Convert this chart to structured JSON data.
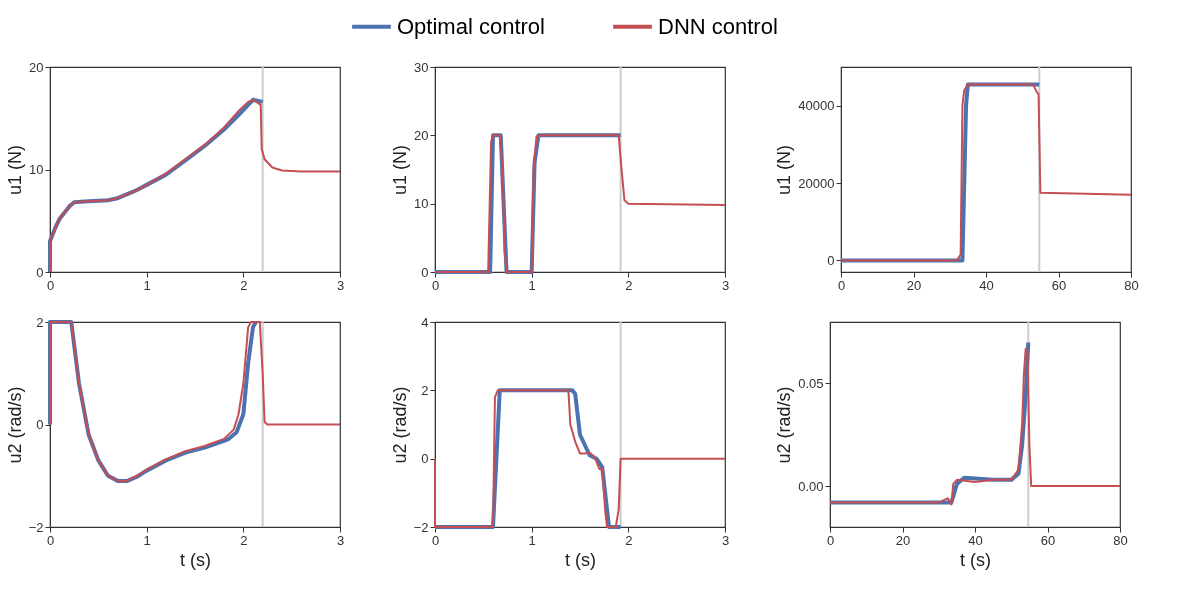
{
  "chart_data": [
    {
      "type": "line",
      "ylabel": "u1 (N)",
      "xlim": [
        0,
        3
      ],
      "xticks": [
        0,
        1,
        2,
        3
      ],
      "ylim": [
        0,
        20
      ],
      "yticks": [
        0,
        10,
        20
      ],
      "grid": false,
      "legend": "top",
      "marker": "none",
      "line_style": "solid",
      "ref_lines": [
        {
          "axis": "x",
          "value": 2.2,
          "color": "#cccccc"
        }
      ],
      "series": [
        {
          "name": "Optimal control",
          "color": "#4c72b0",
          "x": [
            0,
            0,
            0.05,
            0.1,
            0.2,
            0.25,
            0.4,
            0.6,
            0.7,
            0.8,
            0.9,
            1.0,
            1.2,
            1.4,
            1.6,
            1.8,
            1.95,
            2.05,
            2.1,
            2.2
          ],
          "values": [
            0,
            3.0,
            4.2,
            5.2,
            6.4,
            6.8,
            6.9,
            7.0,
            7.2,
            7.6,
            8.0,
            8.5,
            9.5,
            10.9,
            12.3,
            13.9,
            15.3,
            16.3,
            16.8,
            16.6
          ]
        },
        {
          "name": "DNN control",
          "color": "#c44e52",
          "x": [
            0,
            0,
            0.05,
            0.1,
            0.2,
            0.25,
            0.4,
            0.6,
            0.7,
            0.8,
            0.9,
            1.0,
            1.2,
            1.4,
            1.6,
            1.8,
            1.95,
            2.05,
            2.1,
            2.15,
            2.18,
            2.19,
            2.22,
            2.3,
            2.4,
            2.6,
            3.0
          ],
          "values": [
            0,
            3.0,
            4.2,
            5.2,
            6.4,
            6.8,
            6.9,
            7.0,
            7.2,
            7.6,
            8.0,
            8.5,
            9.6,
            11.0,
            12.4,
            14.1,
            15.7,
            16.6,
            16.8,
            16.5,
            16.3,
            12,
            11,
            10.2,
            9.9,
            9.8,
            9.8
          ]
        }
      ]
    },
    {
      "type": "line",
      "ylabel": "u1 (N)",
      "xlim": [
        0,
        3
      ],
      "xticks": [
        0,
        1,
        2,
        3
      ],
      "ylim": [
        0,
        30
      ],
      "yticks": [
        0,
        10,
        20,
        30
      ],
      "grid": false,
      "marker": "none",
      "line_style": "solid",
      "ref_lines": [
        {
          "axis": "x",
          "value": 1.92,
          "color": "#cccccc"
        }
      ],
      "series": [
        {
          "name": "Optimal control",
          "color": "#4c72b0",
          "x": [
            0,
            0.57,
            0.6,
            0.68,
            0.74,
            1.0,
            1.03,
            1.07,
            1.92
          ],
          "values": [
            0,
            0,
            20,
            20,
            0,
            0,
            16,
            20,
            20
          ]
        },
        {
          "name": "DNN control",
          "color": "#c44e52",
          "x": [
            0,
            0.55,
            0.58,
            0.6,
            0.67,
            0.7,
            0.72,
            0.74,
            1.0,
            1.02,
            1.05,
            1.1,
            1.9,
            1.93,
            1.96,
            2.0,
            3.0
          ],
          "values": [
            0,
            0,
            19,
            20,
            20,
            15,
            3,
            0,
            0,
            15,
            19.8,
            20,
            20,
            15,
            10.5,
            10,
            9.8
          ]
        }
      ]
    },
    {
      "type": "line",
      "ylabel": "u1 (N)",
      "xlim": [
        0,
        80
      ],
      "xticks": [
        0,
        20,
        40,
        60,
        80
      ],
      "ylim": [
        -3000,
        50000
      ],
      "yticks": [
        0,
        20000,
        40000
      ],
      "grid": false,
      "marker": "none",
      "line_style": "solid",
      "ref_lines": [
        {
          "axis": "x",
          "value": 54.7,
          "color": "#cccccc"
        }
      ],
      "series": [
        {
          "name": "Optimal control",
          "color": "#4c72b0",
          "x": [
            0,
            33.5,
            34.5,
            35,
            54.7
          ],
          "values": [
            0,
            0,
            40000,
            45500,
            45500
          ]
        },
        {
          "name": "DNN control",
          "color": "#c44e52",
          "x": [
            0,
            32,
            33,
            33.5,
            34,
            35,
            53,
            54,
            54.5,
            55,
            80
          ],
          "values": [
            0,
            0,
            1500,
            40000,
            44000,
            45500,
            45500,
            43500,
            43000,
            17500,
            17000
          ]
        }
      ]
    },
    {
      "type": "line",
      "xlabel": "t (s)",
      "ylabel": "u2 (rad/s)",
      "xlim": [
        0,
        3
      ],
      "xticks": [
        0,
        1,
        2,
        3
      ],
      "ylim": [
        -2,
        2
      ],
      "yticks": [
        -2,
        0,
        2
      ],
      "grid": false,
      "marker": "none",
      "line_style": "solid",
      "ref_lines": [
        {
          "axis": "x",
          "value": 2.2,
          "color": "#cccccc"
        }
      ],
      "series": [
        {
          "name": "Optimal control",
          "color": "#4c72b0",
          "x": [
            0,
            0,
            0.22,
            0.3,
            0.4,
            0.5,
            0.6,
            0.7,
            0.8,
            0.9,
            1.0,
            1.2,
            1.4,
            1.6,
            1.8,
            1.85,
            1.93,
            2.0,
            2.05,
            2.1,
            2.13
          ],
          "values": [
            0,
            2,
            2,
            0.8,
            -0.2,
            -0.7,
            -1.0,
            -1.1,
            -1.1,
            -1.02,
            -0.9,
            -0.7,
            -0.55,
            -0.45,
            -0.32,
            -0.28,
            -0.15,
            0.2,
            1.2,
            1.9,
            2
          ]
        },
        {
          "name": "DNN control",
          "color": "#c44e52",
          "x": [
            0,
            0,
            0.22,
            0.3,
            0.4,
            0.5,
            0.6,
            0.7,
            0.8,
            0.9,
            1.0,
            1.2,
            1.4,
            1.6,
            1.8,
            1.9,
            1.95,
            2.0,
            2.05,
            2.08,
            2.17,
            2.2,
            2.22,
            2.25,
            3
          ],
          "values": [
            0,
            2,
            2,
            0.8,
            -0.2,
            -0.7,
            -1.0,
            -1.1,
            -1.1,
            -1.0,
            -0.88,
            -0.68,
            -0.52,
            -0.42,
            -0.28,
            -0.1,
            0.2,
            0.8,
            1.9,
            2,
            2,
            1.0,
            0.05,
            0,
            0
          ]
        }
      ]
    },
    {
      "type": "line",
      "xlabel": "t (s)",
      "ylabel": "u2 (rad/s)",
      "xlim": [
        0,
        3
      ],
      "xticks": [
        0,
        1,
        2,
        3
      ],
      "ylim": [
        -2,
        4
      ],
      "yticks": [
        -2,
        0,
        2,
        4
      ],
      "grid": false,
      "marker": "none",
      "line_style": "solid",
      "ref_lines": [
        {
          "axis": "x",
          "value": 1.92,
          "color": "#cccccc"
        }
      ],
      "series": [
        {
          "name": "Optimal control",
          "color": "#4c72b0",
          "x": [
            0,
            0.6,
            0.67,
            1.42,
            1.45,
            1.5,
            1.55,
            1.6,
            1.67,
            1.73,
            1.8,
            1.92
          ],
          "values": [
            -2,
            -2,
            2,
            2,
            1.9,
            0.7,
            0.4,
            0.1,
            0,
            -0.25,
            -2,
            -2
          ]
        },
        {
          "name": "DNN control",
          "color": "#c44e52",
          "x": [
            0,
            0,
            0.6,
            0.62,
            0.65,
            1.38,
            1.4,
            1.45,
            1.5,
            1.55,
            1.6,
            1.65,
            1.7,
            1.73,
            1.76,
            1.78,
            1.87,
            1.9,
            1.92,
            3
          ],
          "values": [
            0,
            -2,
            -2,
            1.8,
            2,
            2,
            1.0,
            0.5,
            0.15,
            0.15,
            0.18,
            0.05,
            -0.3,
            -0.3,
            -1.5,
            -2,
            -2,
            -1.5,
            0,
            0
          ]
        }
      ]
    },
    {
      "type": "line",
      "xlabel": "t (s)",
      "ylabel": "u2 (rad/s)",
      "xlim": [
        0,
        80
      ],
      "xticks": [
        0,
        20,
        40,
        60,
        80
      ],
      "ylim": [
        -0.02,
        0.08
      ],
      "yticks": [
        {
          "value": 0,
          "label": "0.00"
        },
        {
          "value": 0.05,
          "label": "0.05"
        }
      ],
      "grid": false,
      "marker": "none",
      "line_style": "solid",
      "ref_lines": [
        {
          "axis": "x",
          "value": 54.7,
          "color": "#cccccc"
        }
      ],
      "series": [
        {
          "name": "Optimal control",
          "color": "#4c72b0",
          "x": [
            0,
            33.5,
            35,
            37,
            45,
            50,
            52,
            53,
            54,
            54.7
          ],
          "values": [
            -0.008,
            -0.008,
            0.001,
            0.004,
            0.003,
            0.003,
            0.006,
            0.02,
            0.045,
            0.07
          ]
        },
        {
          "name": "DNN control",
          "color": "#c44e52",
          "x": [
            0,
            10,
            20,
            30,
            32.5,
            33.5,
            34,
            35,
            40,
            45,
            50,
            52,
            53,
            53.5,
            54,
            54.5,
            55,
            55.5,
            60,
            80
          ],
          "values": [
            -0.008,
            -0.008,
            -0.008,
            -0.008,
            -0.006,
            -0.009,
            0.001,
            0.003,
            0.002,
            0.003,
            0.003,
            0.008,
            0.03,
            0.055,
            0.067,
            0.065,
            0.02,
            0.0,
            0,
            0
          ]
        }
      ]
    }
  ]
}
